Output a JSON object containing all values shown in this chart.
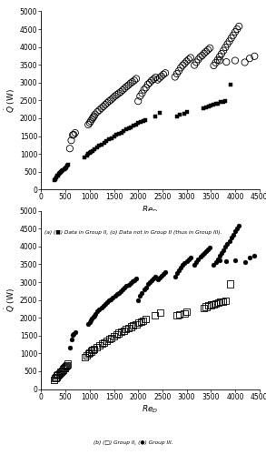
{
  "group_ii": {
    "x": [
      270,
      290,
      310,
      330,
      350,
      370,
      390,
      410,
      430,
      450,
      470,
      490,
      510,
      530,
      550,
      900,
      940,
      970,
      1000,
      1030,
      1060,
      1090,
      1150,
      1200,
      1250,
      1300,
      1350,
      1400,
      1450,
      1500,
      1550,
      1600,
      1650,
      1700,
      1750,
      1800,
      1850,
      1900,
      1960,
      2000,
      2060,
      2100,
      2150,
      2350,
      2450,
      2800,
      2850,
      2950,
      3000,
      3350,
      3400,
      3450,
      3500,
      3550,
      3600,
      3650,
      3700,
      3750,
      3800,
      3900
    ],
    "y": [
      260,
      300,
      330,
      380,
      400,
      440,
      470,
      490,
      520,
      550,
      580,
      600,
      630,
      660,
      700,
      900,
      950,
      990,
      1030,
      1060,
      1090,
      1120,
      1180,
      1230,
      1270,
      1310,
      1360,
      1400,
      1440,
      1490,
      1530,
      1570,
      1600,
      1640,
      1680,
      1710,
      1750,
      1790,
      1820,
      1860,
      1900,
      1920,
      1960,
      2060,
      2150,
      2060,
      2090,
      2130,
      2180,
      2280,
      2310,
      2340,
      2360,
      2380,
      2400,
      2420,
      2450,
      2460,
      2480,
      2950
    ]
  },
  "group_iii": {
    "x": [
      590,
      620,
      650,
      670,
      700,
      970,
      1000,
      1020,
      1050,
      1070,
      1090,
      1110,
      1160,
      1200,
      1240,
      1280,
      1320,
      1360,
      1400,
      1440,
      1480,
      1520,
      1560,
      1600,
      1640,
      1680,
      1720,
      1760,
      1800,
      1840,
      1880,
      1920,
      1960,
      2000,
      2040,
      2080,
      2120,
      2160,
      2200,
      2240,
      2280,
      2320,
      2360,
      2400,
      2440,
      2480,
      2520,
      2560,
      2760,
      2800,
      2840,
      2880,
      2920,
      2960,
      3000,
      3040,
      3080,
      3160,
      3200,
      3240,
      3280,
      3320,
      3360,
      3400,
      3440,
      3480,
      3560,
      3600,
      3640,
      3680,
      3720,
      3760,
      3800,
      3840,
      3880,
      3920,
      3960,
      4000,
      4040,
      4080,
      3680,
      3820,
      4000,
      4200,
      4300,
      4400
    ],
    "y": [
      1150,
      1380,
      1530,
      1540,
      1590,
      1820,
      1870,
      1920,
      1980,
      2020,
      2060,
      2110,
      2180,
      2230,
      2280,
      2330,
      2380,
      2430,
      2480,
      2520,
      2570,
      2620,
      2660,
      2700,
      2740,
      2790,
      2840,
      2890,
      2930,
      2980,
      3020,
      3060,
      3110,
      2480,
      2620,
      2700,
      2800,
      2860,
      2950,
      3000,
      3060,
      3100,
      3150,
      3080,
      3130,
      3180,
      3230,
      3270,
      3160,
      3250,
      3330,
      3420,
      3490,
      3540,
      3600,
      3650,
      3700,
      3490,
      3570,
      3650,
      3720,
      3760,
      3820,
      3870,
      3920,
      3970,
      3480,
      3560,
      3640,
      3730,
      3810,
      3900,
      3990,
      4080,
      4160,
      4250,
      4330,
      4420,
      4500,
      4580,
      3620,
      3580,
      3620,
      3570,
      3680,
      3740
    ]
  },
  "xlim": [
    0,
    4500
  ],
  "ylim": [
    0,
    5000
  ],
  "xticks": [
    0,
    500,
    1000,
    1500,
    2000,
    2500,
    3000,
    3500,
    4000,
    4500
  ],
  "yticks": [
    0,
    500,
    1000,
    1500,
    2000,
    2500,
    3000,
    3500,
    4000,
    4500,
    5000
  ],
  "xlabel": "$Re_D$",
  "ylabel": "$\\dot{Q}$ (W)",
  "caption_a": "(a) (■) Data in Group II, (o) Data not in Group II (thus in Group III).",
  "caption_b": "(b) (□) Group II, (●) Group III.",
  "background_color": "#ffffff"
}
